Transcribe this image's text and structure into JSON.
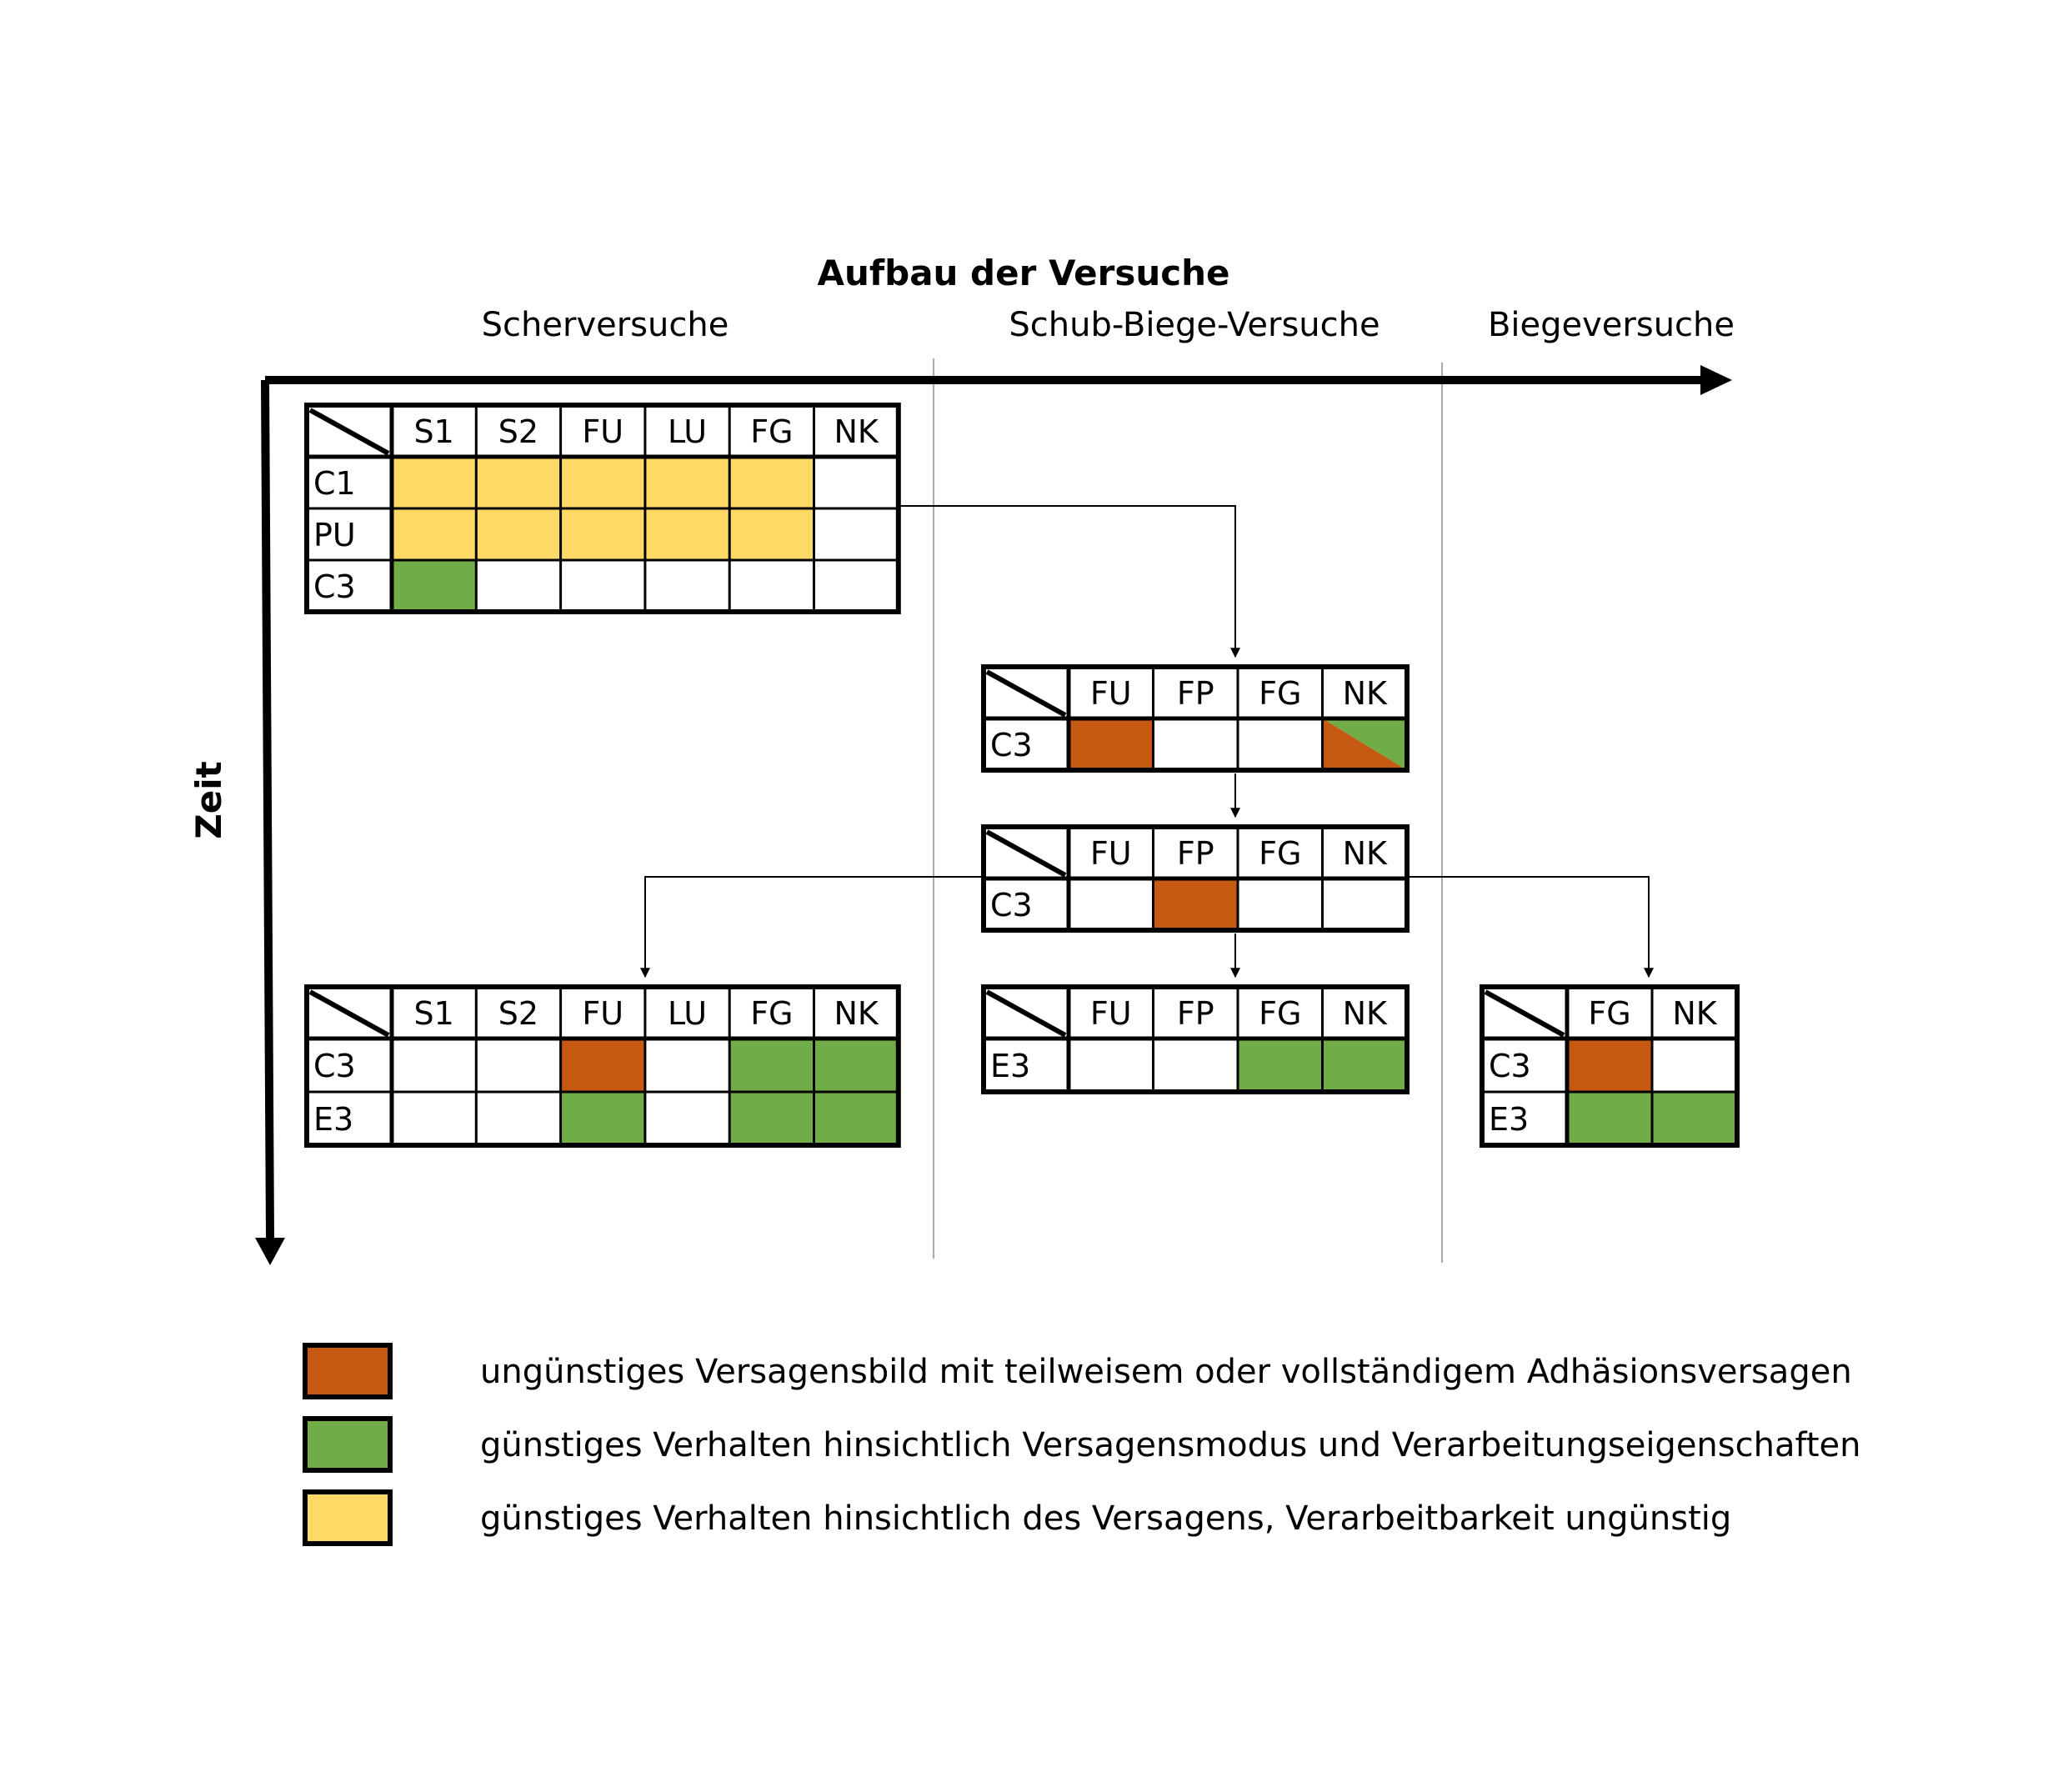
{
  "title": "Aufbau der Versuche",
  "sections": {
    "shear": "Scherversuche",
    "shear_bending": "Schub-Biege-Versuche",
    "bending": "Biegeversuche"
  },
  "time_axis_label": "Zeit",
  "colors": {
    "orange": "#C65911",
    "green": "#70AD47",
    "yellow": "#FFD966",
    "white": "#FFFFFF"
  },
  "tables": [
    {
      "id": "shear-table-1",
      "columns": [
        "S1",
        "S2",
        "FU",
        "LU",
        "FG",
        "NK"
      ],
      "rows": [
        {
          "label": "C1",
          "cells": [
            "yellow",
            "yellow",
            "yellow",
            "yellow",
            "yellow",
            "white"
          ]
        },
        {
          "label": "PU",
          "cells": [
            "yellow",
            "yellow",
            "yellow",
            "yellow",
            "yellow",
            "white"
          ]
        },
        {
          "label": "C3",
          "cells": [
            "green",
            "white",
            "white",
            "white",
            "white",
            "white"
          ]
        }
      ]
    },
    {
      "id": "shear-bending-table-1",
      "columns": [
        "FU",
        "FP",
        "FG",
        "NK"
      ],
      "rows": [
        {
          "label": "C3",
          "cells": [
            "orange",
            "white",
            "white",
            "split"
          ]
        }
      ]
    },
    {
      "id": "shear-bending-table-2",
      "columns": [
        "FU",
        "FP",
        "FG",
        "NK"
      ],
      "rows": [
        {
          "label": "C3",
          "cells": [
            "white",
            "orange",
            "white",
            "white"
          ]
        }
      ]
    },
    {
      "id": "shear-table-2",
      "columns": [
        "S1",
        "S2",
        "FU",
        "LU",
        "FG",
        "NK"
      ],
      "rows": [
        {
          "label": "C3",
          "cells": [
            "white",
            "white",
            "orange",
            "white",
            "green",
            "green"
          ]
        },
        {
          "label": "E3",
          "cells": [
            "white",
            "white",
            "green",
            "white",
            "green",
            "green"
          ]
        }
      ]
    },
    {
      "id": "shear-bending-table-3",
      "columns": [
        "FU",
        "FP",
        "FG",
        "NK"
      ],
      "rows": [
        {
          "label": "E3",
          "cells": [
            "white",
            "white",
            "green",
            "green"
          ]
        }
      ]
    },
    {
      "id": "bending-table-1",
      "columns": [
        "FG",
        "NK"
      ],
      "rows": [
        {
          "label": "C3",
          "cells": [
            "orange",
            "white"
          ]
        },
        {
          "label": "E3",
          "cells": [
            "green",
            "green"
          ]
        }
      ]
    }
  ],
  "legend": [
    {
      "color": "orange",
      "text": "ungünstiges Versagensbild mit teilweisem oder vollständigem Adhäsionsversagen"
    },
    {
      "color": "green",
      "text": "günstiges Verhalten hinsichtlich Versagensmodus und Verarbeitungseigenschaften"
    },
    {
      "color": "yellow",
      "text": "günstiges Verhalten hinsichtlich des Versagens, Verarbeitbarkeit ungünstig"
    }
  ]
}
